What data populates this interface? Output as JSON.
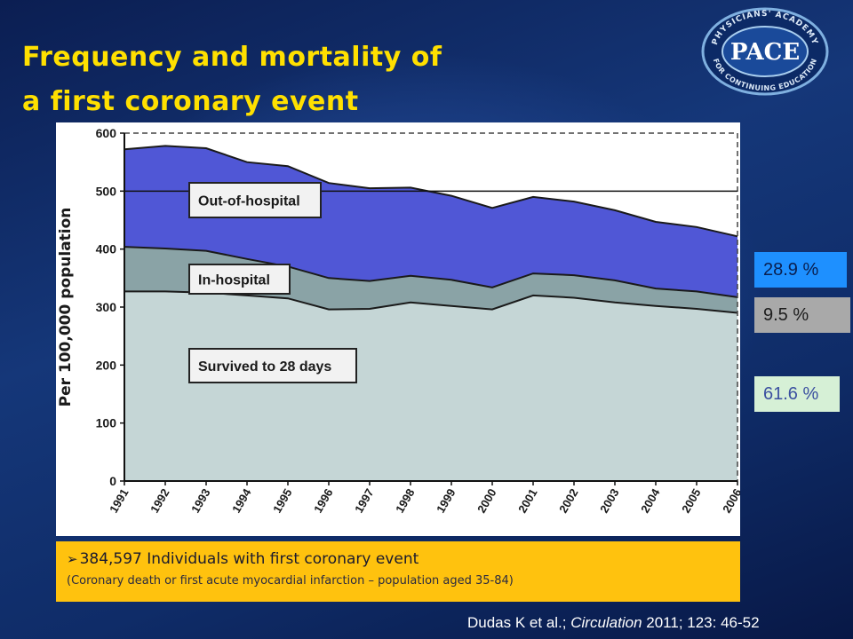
{
  "slide": {
    "title_line1": "Frequency and mortality of",
    "title_line2": "a first coronary event",
    "logo": {
      "ring_text_top": "PHYSICIANS' ACADEMY",
      "ring_text_bottom": "FOR CONTINUING EDUCATION",
      "center": "PACE"
    },
    "percentages": {
      "out_of_hospital": "28.9 %",
      "in_hospital": "9.5 %",
      "survived": "61.6 %"
    },
    "note": {
      "arrow": "➢",
      "line1": "384,597 Individuals with first coronary event",
      "line2": "(Coronary death or first acute myocardial infarction – population aged 35-84)"
    },
    "citation": {
      "authors": "Dudas K et al.; ",
      "journal": "Circulation",
      "rest": " 2011; 123: 46-52"
    }
  },
  "chart_data": {
    "type": "area",
    "stacked": true,
    "x": [
      "1991",
      "1992",
      "1993",
      "1994",
      "1995",
      "1996",
      "1997",
      "1998",
      "1999",
      "2000",
      "2001",
      "2002",
      "2003",
      "2004",
      "2005",
      "2006"
    ],
    "ylabel": "Per 100,000 population",
    "ylim": [
      0,
      600
    ],
    "yticks": [
      0,
      100,
      200,
      300,
      400,
      500,
      600
    ],
    "grid": false,
    "reference_line": 500,
    "series": [
      {
        "name": "Survived to 28 days",
        "color": "#c5d6d6",
        "values": [
          327,
          327,
          325,
          320,
          315,
          296,
          297,
          308,
          302,
          296,
          320,
          316,
          308,
          302,
          297,
          290
        ]
      },
      {
        "name": "In-hospital",
        "color": "#8aa3a6",
        "values": [
          77,
          74,
          72,
          63,
          55,
          54,
          48,
          46,
          45,
          38,
          38,
          39,
          38,
          30,
          30,
          27
        ]
      },
      {
        "name": "Out-of-hospital",
        "color": "#5057d6",
        "values": [
          168,
          177,
          177,
          167,
          173,
          164,
          160,
          152,
          145,
          137,
          132,
          127,
          121,
          115,
          111,
          105
        ]
      }
    ]
  }
}
